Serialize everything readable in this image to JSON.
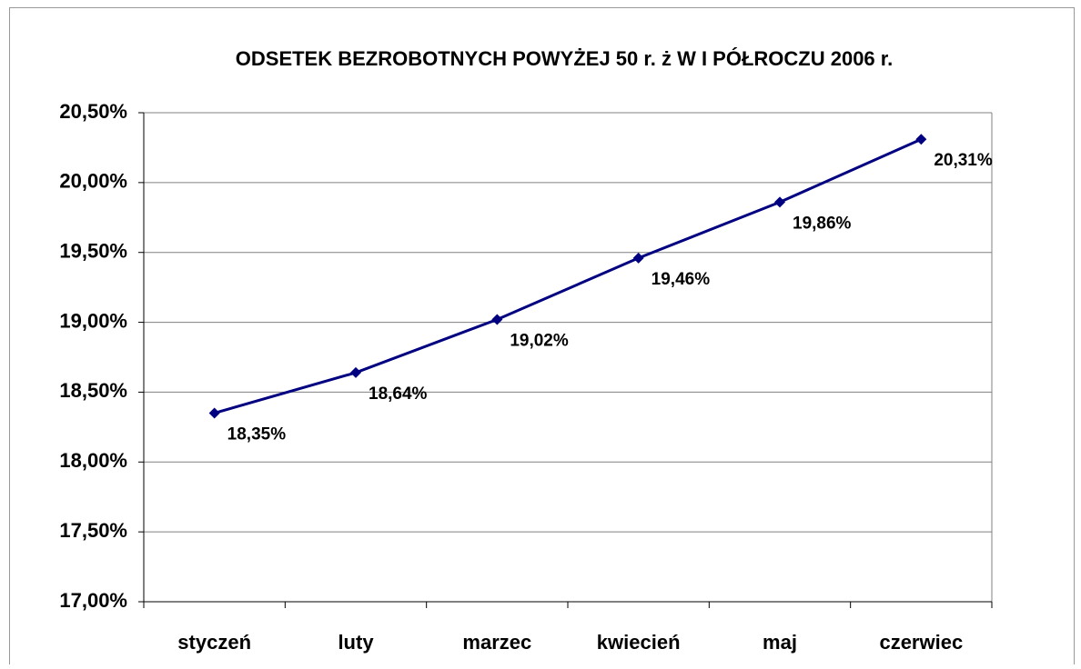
{
  "chart_data": {
    "type": "line",
    "title": "ODSETEK BEZROBOTNYCH POWYŻEJ 50 r. ż W I PÓŁROCZU 2006 r.",
    "categories": [
      "styczeń",
      "luty",
      "marzec",
      "kwiecień",
      "maj",
      "czerwiec"
    ],
    "series": [
      {
        "color": "#000080",
        "values": [
          18.35,
          18.64,
          19.02,
          19.46,
          19.86,
          20.31
        ],
        "value_labels": [
          "18,35%",
          "18,64%",
          "19,02%",
          "19,46%",
          "19,86%",
          "20,31%"
        ]
      }
    ],
    "ylim": [
      17,
      20.5
    ],
    "yticks": [
      {
        "value": 17,
        "label": "17,00%"
      },
      {
        "value": 17.5,
        "label": "17,50%"
      },
      {
        "value": 18,
        "label": "18,00%"
      },
      {
        "value": 18.5,
        "label": "18,50%"
      },
      {
        "value": 19,
        "label": "19,00%"
      },
      {
        "value": 19.5,
        "label": "19,50%"
      },
      {
        "value": 20,
        "label": "20,00%"
      },
      {
        "value": 20.5,
        "label": "20,50%"
      }
    ],
    "grid": true
  }
}
